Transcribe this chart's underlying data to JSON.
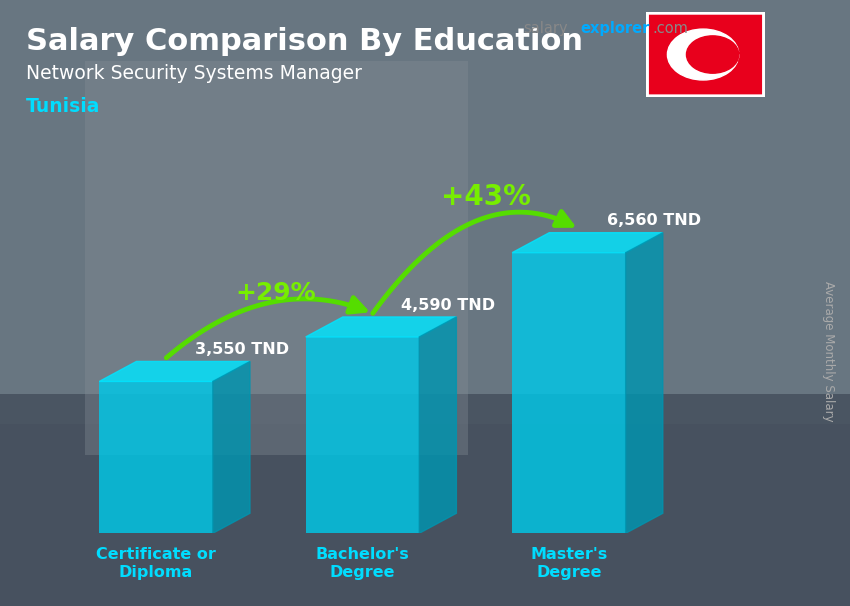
{
  "title": "Salary Comparison By Education",
  "subtitle": "Network Security Systems Manager",
  "country": "Tunisia",
  "ylabel": "Average Monthly Salary",
  "categories": [
    "Certificate or\nDiploma",
    "Bachelor's\nDegree",
    "Master's\nDegree"
  ],
  "values": [
    3550,
    4590,
    6560
  ],
  "value_labels": [
    "3,550 TND",
    "4,590 TND",
    "6,560 TND"
  ],
  "pct_labels": [
    "+29%",
    "+43%"
  ],
  "bar_color_face": "#00c8e8",
  "bar_color_top": "#00e5ff",
  "bar_color_side": "#0095b0",
  "bg_color": "#8899aa",
  "overlay_color": "#aabbcc",
  "title_color": "#ffffff",
  "subtitle_color": "#ffffff",
  "country_color": "#00ddff",
  "value_label_color": "#ffffff",
  "pct_color": "#77ee00",
  "arrow_color": "#55dd00",
  "xlabel_color": "#00ddff",
  "ylabel_color": "#aaaaaa",
  "ylim": [
    0,
    8500
  ],
  "bar_width": 0.55,
  "fig_width": 8.5,
  "fig_height": 6.06,
  "bar_alpha": 0.82,
  "site_salary_color": "#888888",
  "site_explorer_color": "#00aaff",
  "site_com_color": "#888888",
  "flag_red": "#e8001c"
}
